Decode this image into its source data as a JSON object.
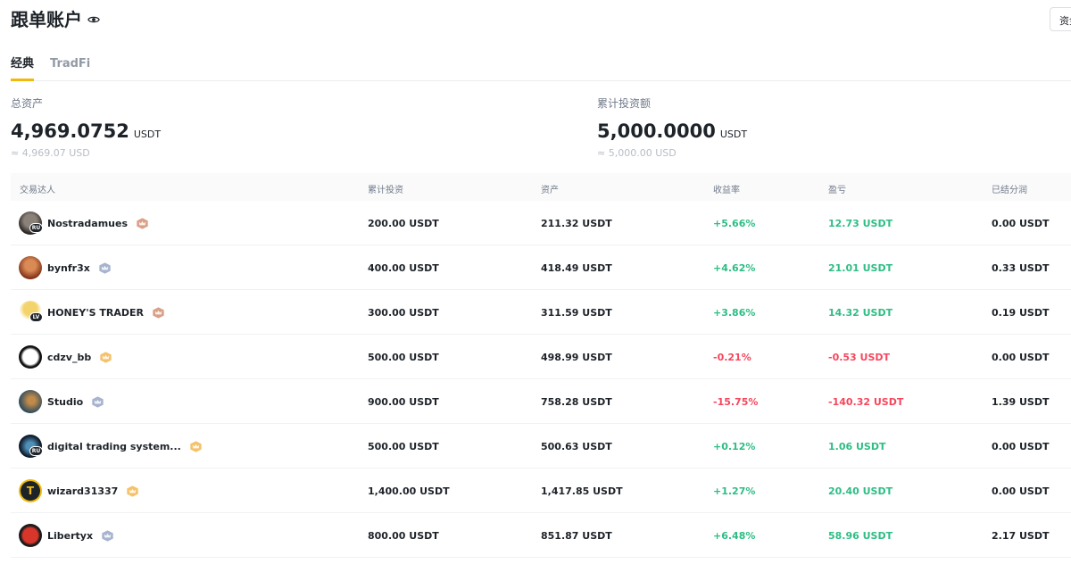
{
  "header": {
    "title": "跟单账户",
    "right_button": "资金"
  },
  "tabs": [
    {
      "label": "经典"
    },
    {
      "label": "TradFi"
    }
  ],
  "stats": {
    "total_assets": {
      "label": "总资产",
      "value": "4,969.0752",
      "unit": "USDT",
      "approx": "≈ 4,969.07 USD"
    },
    "total_invest": {
      "label": "累计投资额",
      "value": "5,000.0000",
      "unit": "USDT",
      "approx": "≈ 5,000.00 USD"
    }
  },
  "table": {
    "headers": {
      "trader": "交易达人",
      "invest": "累计投资",
      "assets": "资产",
      "rate": "收益率",
      "pnl": "盈亏",
      "profit_share": "已结分润"
    },
    "rows": [
      {
        "name": "Nostradamues",
        "avatar_tag": "RU",
        "badge": "bronze",
        "invest": "200.00 USDT",
        "assets": "211.32 USDT",
        "rate": "+5.66%",
        "pnl": "12.73 USDT",
        "profit_share": "0.00 USDT",
        "sign": "pos"
      },
      {
        "name": "bynfr3x",
        "avatar_tag": "",
        "badge": "silver",
        "invest": "400.00 USDT",
        "assets": "418.49 USDT",
        "rate": "+4.62%",
        "pnl": "21.01 USDT",
        "profit_share": "0.33 USDT",
        "sign": "pos"
      },
      {
        "name": "HONEY'S TRADER",
        "avatar_tag": "LV",
        "badge": "bronze",
        "invest": "300.00 USDT",
        "assets": "311.59 USDT",
        "rate": "+3.86%",
        "pnl": "14.32 USDT",
        "profit_share": "0.19 USDT",
        "sign": "pos"
      },
      {
        "name": "cdzv_bb",
        "avatar_tag": "",
        "badge": "gold",
        "invest": "500.00 USDT",
        "assets": "498.99 USDT",
        "rate": "-0.21%",
        "pnl": "-0.53 USDT",
        "profit_share": "0.00 USDT",
        "sign": "neg"
      },
      {
        "name": "Studio",
        "avatar_tag": "",
        "badge": "silver",
        "invest": "900.00 USDT",
        "assets": "758.28 USDT",
        "rate": "-15.75%",
        "pnl": "-140.32 USDT",
        "profit_share": "1.39 USDT",
        "sign": "neg"
      },
      {
        "name": "digital trading system...",
        "avatar_tag": "RU",
        "badge": "gold",
        "invest": "500.00 USDT",
        "assets": "500.63 USDT",
        "rate": "+0.12%",
        "pnl": "1.06 USDT",
        "profit_share": "0.00 USDT",
        "sign": "pos"
      },
      {
        "name": "wizard31337",
        "avatar_tag": "",
        "badge": "gold",
        "invest": "1,400.00 USDT",
        "assets": "1,417.85 USDT",
        "rate": "+1.27%",
        "pnl": "20.40 USDT",
        "profit_share": "0.00 USDT",
        "sign": "pos"
      },
      {
        "name": "Libertyx",
        "avatar_tag": "",
        "badge": "silver",
        "invest": "800.00 USDT",
        "assets": "851.87 USDT",
        "rate": "+6.48%",
        "pnl": "58.96 USDT",
        "profit_share": "2.17 USDT",
        "sign": "pos"
      }
    ]
  },
  "colors": {
    "accent": "#f0b90b",
    "positive": "#2ebd85",
    "negative": "#f6465d",
    "badge_bronze": "#d9a087",
    "badge_silver": "#a7b4cf",
    "badge_gold": "#f5c26b"
  }
}
